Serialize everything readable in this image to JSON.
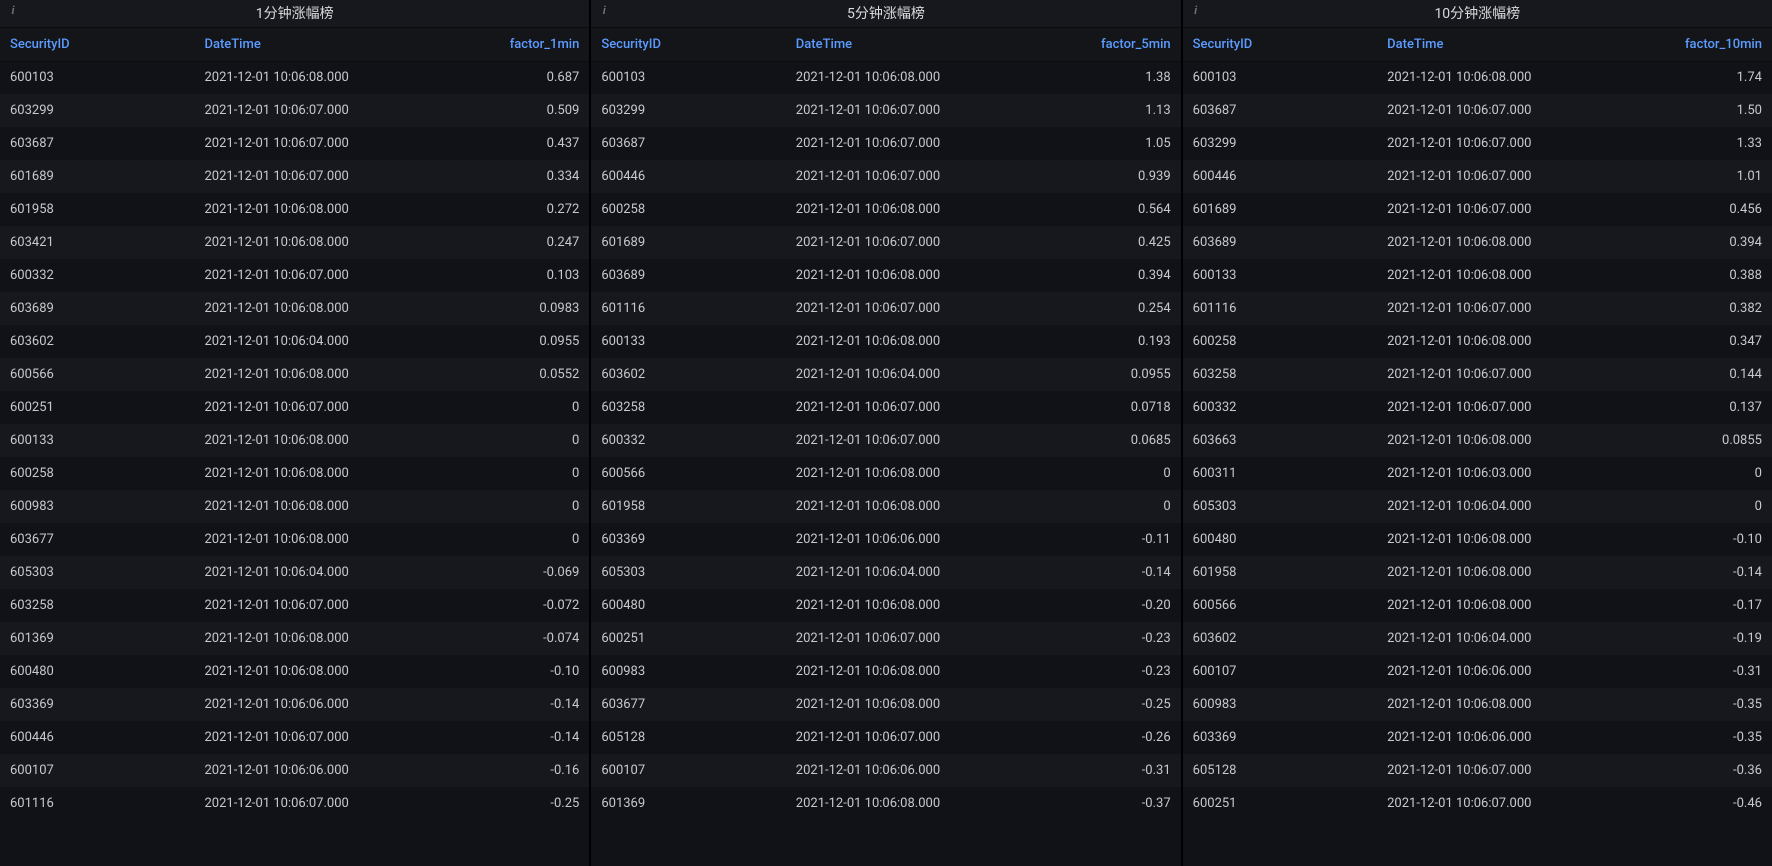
{
  "colors": {
    "background": "#0b0c0e",
    "panel_bg": "#111217",
    "header_bg": "#17181d",
    "row_odd": "#111217",
    "row_even": "#17181d",
    "text": "#c7c9cc",
    "header_text": "#5b9bff"
  },
  "panels": [
    {
      "title": "1分钟涨幅榜",
      "columns": [
        "SecurityID",
        "DateTime",
        "factor_1min"
      ],
      "rows": [
        [
          "600103",
          "2021-12-01 10:06:08.000",
          "0.687"
        ],
        [
          "603299",
          "2021-12-01 10:06:07.000",
          "0.509"
        ],
        [
          "603687",
          "2021-12-01 10:06:07.000",
          "0.437"
        ],
        [
          "601689",
          "2021-12-01 10:06:07.000",
          "0.334"
        ],
        [
          "601958",
          "2021-12-01 10:06:08.000",
          "0.272"
        ],
        [
          "603421",
          "2021-12-01 10:06:08.000",
          "0.247"
        ],
        [
          "600332",
          "2021-12-01 10:06:07.000",
          "0.103"
        ],
        [
          "603689",
          "2021-12-01 10:06:08.000",
          "0.0983"
        ],
        [
          "603602",
          "2021-12-01 10:06:04.000",
          "0.0955"
        ],
        [
          "600566",
          "2021-12-01 10:06:08.000",
          "0.0552"
        ],
        [
          "600251",
          "2021-12-01 10:06:07.000",
          "0"
        ],
        [
          "600133",
          "2021-12-01 10:06:08.000",
          "0"
        ],
        [
          "600258",
          "2021-12-01 10:06:08.000",
          "0"
        ],
        [
          "600983",
          "2021-12-01 10:06:08.000",
          "0"
        ],
        [
          "603677",
          "2021-12-01 10:06:08.000",
          "0"
        ],
        [
          "605303",
          "2021-12-01 10:06:04.000",
          "-0.069"
        ],
        [
          "603258",
          "2021-12-01 10:06:07.000",
          "-0.072"
        ],
        [
          "601369",
          "2021-12-01 10:06:08.000",
          "-0.074"
        ],
        [
          "600480",
          "2021-12-01 10:06:08.000",
          "-0.10"
        ],
        [
          "603369",
          "2021-12-01 10:06:06.000",
          "-0.14"
        ],
        [
          "600446",
          "2021-12-01 10:06:07.000",
          "-0.14"
        ],
        [
          "600107",
          "2021-12-01 10:06:06.000",
          "-0.16"
        ],
        [
          "601116",
          "2021-12-01 10:06:07.000",
          "-0.25"
        ]
      ]
    },
    {
      "title": "5分钟涨幅榜",
      "columns": [
        "SecurityID",
        "DateTime",
        "factor_5min"
      ],
      "rows": [
        [
          "600103",
          "2021-12-01 10:06:08.000",
          "1.38"
        ],
        [
          "603299",
          "2021-12-01 10:06:07.000",
          "1.13"
        ],
        [
          "603687",
          "2021-12-01 10:06:07.000",
          "1.05"
        ],
        [
          "600446",
          "2021-12-01 10:06:07.000",
          "0.939"
        ],
        [
          "600258",
          "2021-12-01 10:06:08.000",
          "0.564"
        ],
        [
          "601689",
          "2021-12-01 10:06:07.000",
          "0.425"
        ],
        [
          "603689",
          "2021-12-01 10:06:08.000",
          "0.394"
        ],
        [
          "601116",
          "2021-12-01 10:06:07.000",
          "0.254"
        ],
        [
          "600133",
          "2021-12-01 10:06:08.000",
          "0.193"
        ],
        [
          "603602",
          "2021-12-01 10:06:04.000",
          "0.0955"
        ],
        [
          "603258",
          "2021-12-01 10:06:07.000",
          "0.0718"
        ],
        [
          "600332",
          "2021-12-01 10:06:07.000",
          "0.0685"
        ],
        [
          "600566",
          "2021-12-01 10:06:08.000",
          "0"
        ],
        [
          "601958",
          "2021-12-01 10:06:08.000",
          "0"
        ],
        [
          "603369",
          "2021-12-01 10:06:06.000",
          "-0.11"
        ],
        [
          "605303",
          "2021-12-01 10:06:04.000",
          "-0.14"
        ],
        [
          "600480",
          "2021-12-01 10:06:08.000",
          "-0.20"
        ],
        [
          "600251",
          "2021-12-01 10:06:07.000",
          "-0.23"
        ],
        [
          "600983",
          "2021-12-01 10:06:08.000",
          "-0.23"
        ],
        [
          "603677",
          "2021-12-01 10:06:08.000",
          "-0.25"
        ],
        [
          "605128",
          "2021-12-01 10:06:07.000",
          "-0.26"
        ],
        [
          "600107",
          "2021-12-01 10:06:06.000",
          "-0.31"
        ],
        [
          "601369",
          "2021-12-01 10:06:08.000",
          "-0.37"
        ]
      ]
    },
    {
      "title": "10分钟涨幅榜",
      "columns": [
        "SecurityID",
        "DateTime",
        "factor_10min"
      ],
      "rows": [
        [
          "600103",
          "2021-12-01 10:06:08.000",
          "1.74"
        ],
        [
          "603687",
          "2021-12-01 10:06:07.000",
          "1.50"
        ],
        [
          "603299",
          "2021-12-01 10:06:07.000",
          "1.33"
        ],
        [
          "600446",
          "2021-12-01 10:06:07.000",
          "1.01"
        ],
        [
          "601689",
          "2021-12-01 10:06:07.000",
          "0.456"
        ],
        [
          "603689",
          "2021-12-01 10:06:08.000",
          "0.394"
        ],
        [
          "600133",
          "2021-12-01 10:06:08.000",
          "0.388"
        ],
        [
          "601116",
          "2021-12-01 10:06:07.000",
          "0.382"
        ],
        [
          "600258",
          "2021-12-01 10:06:08.000",
          "0.347"
        ],
        [
          "603258",
          "2021-12-01 10:06:07.000",
          "0.144"
        ],
        [
          "600332",
          "2021-12-01 10:06:07.000",
          "0.137"
        ],
        [
          "603663",
          "2021-12-01 10:06:08.000",
          "0.0855"
        ],
        [
          "600311",
          "2021-12-01 10:06:03.000",
          "0"
        ],
        [
          "605303",
          "2021-12-01 10:06:04.000",
          "0"
        ],
        [
          "600480",
          "2021-12-01 10:06:08.000",
          "-0.10"
        ],
        [
          "601958",
          "2021-12-01 10:06:08.000",
          "-0.14"
        ],
        [
          "600566",
          "2021-12-01 10:06:08.000",
          "-0.17"
        ],
        [
          "603602",
          "2021-12-01 10:06:04.000",
          "-0.19"
        ],
        [
          "600107",
          "2021-12-01 10:06:06.000",
          "-0.31"
        ],
        [
          "600983",
          "2021-12-01 10:06:08.000",
          "-0.35"
        ],
        [
          "603369",
          "2021-12-01 10:06:06.000",
          "-0.35"
        ],
        [
          "605128",
          "2021-12-01 10:06:07.000",
          "-0.36"
        ],
        [
          "600251",
          "2021-12-01 10:06:07.000",
          "-0.46"
        ]
      ]
    }
  ]
}
